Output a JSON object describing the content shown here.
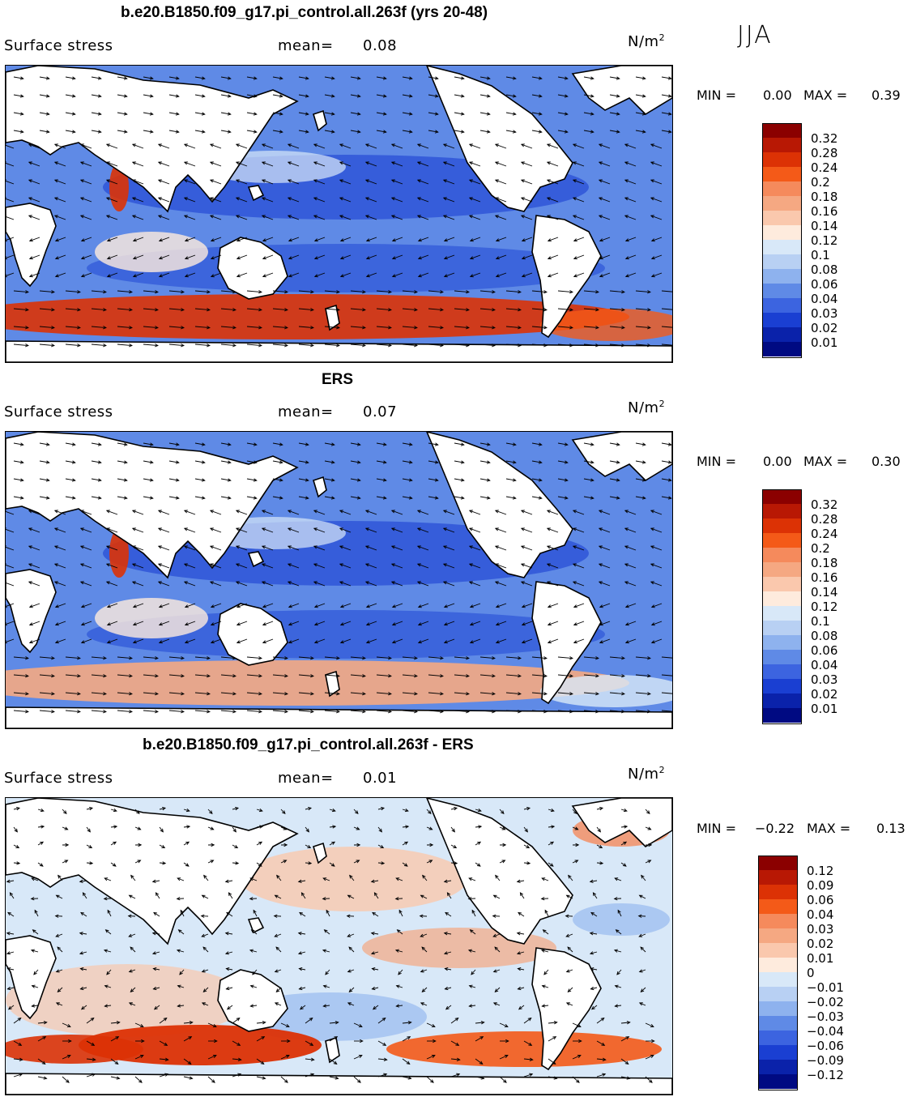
{
  "season": "JJA",
  "panels": [
    {
      "id": "model",
      "title": "b.e20.B1850.f09_g17.pi_control.all.263f (yrs 20-48)",
      "field": "Surface stress",
      "mean_label": "mean=",
      "mean_value": "0.08",
      "unit": "N/m",
      "unit_exp": "2",
      "min_label": "MIN =",
      "min_value": "0.00",
      "max_label": "MAX =",
      "max_value": "0.39",
      "colorbar": {
        "colors": [
          "#8b0000",
          "#b81804",
          "#dc3205",
          "#f45a18",
          "#f58a5c",
          "#f5a882",
          "#fac8ad",
          "#feebdd",
          "#d8e8f8",
          "#b8d0f3",
          "#8eb2ee",
          "#5f8ae6",
          "#3c64e0",
          "#1a3fd2",
          "#0a22aa",
          "#000a82"
        ],
        "labels": [
          "0.32",
          "0.28",
          "0.24",
          "0.2",
          "0.18",
          "0.16",
          "0.14",
          "0.12",
          "0.1",
          "0.08",
          "0.06",
          "0.04",
          "0.03",
          "0.02",
          "0.01"
        ]
      }
    },
    {
      "id": "obs",
      "title": "ERS",
      "field": "Surface stress",
      "mean_label": "mean=",
      "mean_value": "0.07",
      "unit": "N/m",
      "unit_exp": "2",
      "min_label": "MIN =",
      "min_value": "0.00",
      "max_label": "MAX =",
      "max_value": "0.30",
      "colorbar": {
        "colors": [
          "#8b0000",
          "#b81804",
          "#dc3205",
          "#f45a18",
          "#f58a5c",
          "#f5a882",
          "#fac8ad",
          "#feebdd",
          "#d8e8f8",
          "#b8d0f3",
          "#8eb2ee",
          "#5f8ae6",
          "#3c64e0",
          "#1a3fd2",
          "#0a22aa",
          "#000a82"
        ],
        "labels": [
          "0.32",
          "0.28",
          "0.24",
          "0.2",
          "0.18",
          "0.16",
          "0.14",
          "0.12",
          "0.1",
          "0.08",
          "0.06",
          "0.04",
          "0.03",
          "0.02",
          "0.01"
        ]
      }
    },
    {
      "id": "diff",
      "title": "b.e20.B1850.f09_g17.pi_control.all.263f - ERS",
      "field": "Surface stress",
      "mean_label": "mean=",
      "mean_value": "0.01",
      "unit": "N/m",
      "unit_exp": "2",
      "min_label": "MIN =",
      "min_value": "−0.22",
      "max_label": "MAX =",
      "max_value": "0.13",
      "colorbar": {
        "colors": [
          "#8b0000",
          "#b81804",
          "#dc3205",
          "#f45a18",
          "#f58a5c",
          "#f5a882",
          "#fac8ad",
          "#feebdd",
          "#d8e8f8",
          "#b8d0f3",
          "#8eb2ee",
          "#5f8ae6",
          "#3c64e0",
          "#1a3fd2",
          "#0a22aa",
          "#000a82"
        ],
        "labels": [
          "0.12",
          "0.09",
          "0.06",
          "0.04",
          "0.03",
          "0.02",
          "0.01",
          "0",
          "−0.01",
          "−0.02",
          "−0.03",
          "−0.04",
          "−0.06",
          "−0.09",
          "−0.12"
        ]
      }
    }
  ]
}
